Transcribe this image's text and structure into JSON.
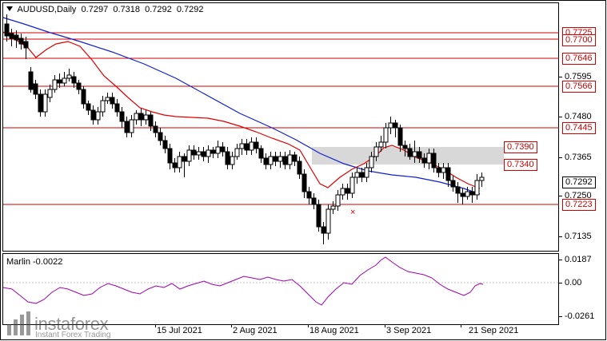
{
  "header": {
    "symbol": "AUDUSD,Daily",
    "open": "0.7297",
    "high": "0.7318",
    "low": "0.7292",
    "close": "0.7292"
  },
  "oscillator": {
    "name": "Marlin",
    "value": "-0.0022",
    "ticks": [
      "0.0187",
      "0.00",
      "-0.0261"
    ]
  },
  "price_axis": {
    "ticks": [
      "0.7595",
      "0.7480",
      "0.7365",
      "0.7250",
      "0.7135"
    ],
    "levels": [
      "0.7725",
      "0.7700",
      "0.7646",
      "0.7566",
      "0.7445",
      "0.7223"
    ],
    "current_price": "0.7292"
  },
  "zone_labels": [
    "0.7390",
    "0.7340"
  ],
  "dates": [
    "15 Jul 2021",
    "2 Aug 2021",
    "18 Aug 2021",
    "3 Sep 2021",
    "21 Sep 2021"
  ],
  "watermark": {
    "name": "instaforex",
    "tagline": "Instant Forex Trading"
  },
  "colors": {
    "level_line": "#d00000",
    "fast_ma": "#e00000",
    "slow_ma": "#1020d0",
    "oscillator_line": "#a000b0",
    "zone_fill": "#d8d8d8"
  }
}
